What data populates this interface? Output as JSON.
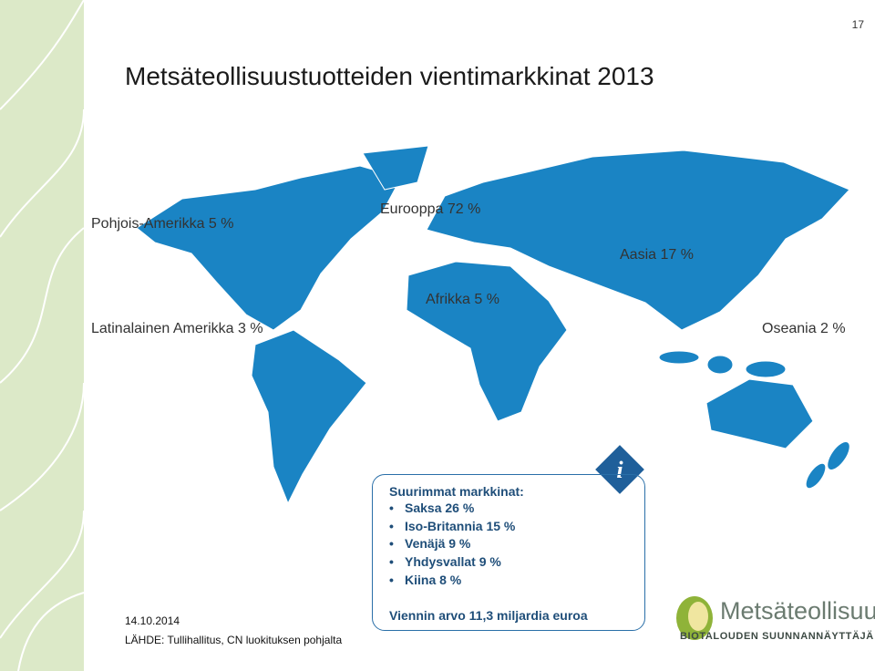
{
  "page_number": "17",
  "title": "Metsäteollisuustuotteiden vientimarkkinat 2013",
  "regions": [
    "Pohjois-Amerikka 5 %",
    "Eurooppa 72 %",
    "Aasia 17 %",
    "Afrikka 5 %",
    "Latinalainen Amerikka 3 %",
    "Oseania 2 %"
  ],
  "info_box": {
    "heading": "Suurimmat markkinat:",
    "items": [
      "Saksa 26 %",
      "Iso-Britannia 15 %",
      "Venäjä 9 %",
      "Yhdysvallat 9 %",
      "Kiina 8 %"
    ],
    "footer": "Viennin arvo 11,3 miljardia euroa"
  },
  "date": "14.10.2014",
  "source": "LÄHDE: Tullihallitus, CN luokituksen pohjalta",
  "logo": {
    "name": "Metsäteollisuus",
    "tagline": "BIOTALOUDEN SUUNNANNÄYTTÄJÄ"
  }
}
